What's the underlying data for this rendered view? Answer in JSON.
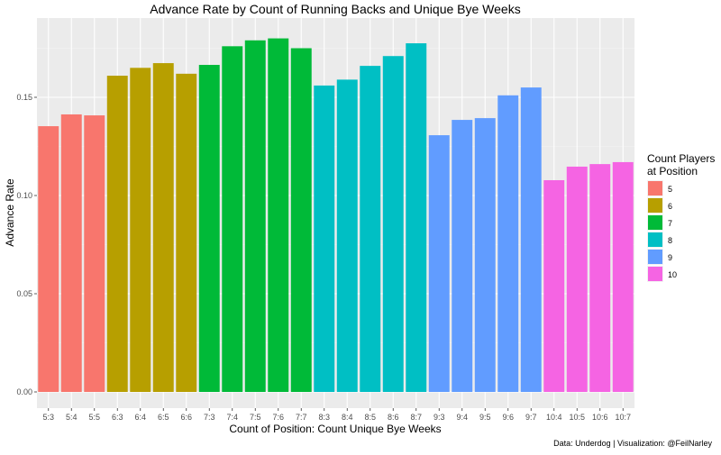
{
  "chart_data": {
    "type": "bar",
    "title": "Advance Rate by Count of Running Backs and Unique Bye Weeks",
    "xlabel": "Count of Position: Count Unique Bye Weeks",
    "ylabel": "Advance Rate",
    "ylim": [
      0,
      0.19
    ],
    "yticks": [
      0.0,
      0.05,
      0.1,
      0.15
    ],
    "ytick_labels": [
      "0.00",
      "0.05",
      "0.10",
      "0.15"
    ],
    "grid": true,
    "categories": [
      "5:3",
      "5:4",
      "5:5",
      "6:3",
      "6:4",
      "6:5",
      "6:6",
      "7:3",
      "7:4",
      "7:5",
      "7:6",
      "7:7",
      "8:3",
      "8:4",
      "8:5",
      "8:6",
      "8:7",
      "9:3",
      "9:4",
      "9:5",
      "9:6",
      "9:7",
      "10:4",
      "10:5",
      "10:6",
      "10:7"
    ],
    "groups": [
      "5",
      "5",
      "5",
      "6",
      "6",
      "6",
      "6",
      "7",
      "7",
      "7",
      "7",
      "7",
      "8",
      "8",
      "8",
      "8",
      "8",
      "9",
      "9",
      "9",
      "9",
      "9",
      "10",
      "10",
      "10",
      "10"
    ],
    "values": [
      0.1353,
      0.1413,
      0.1408,
      0.161,
      0.165,
      0.1674,
      0.162,
      0.1665,
      0.176,
      0.179,
      0.18,
      0.175,
      0.156,
      0.159,
      0.166,
      0.171,
      0.1775,
      0.1307,
      0.1385,
      0.1394,
      0.151,
      0.155,
      0.1078,
      0.1147,
      0.116,
      0.117
    ],
    "legend": {
      "title_lines": [
        "Count Players",
        "at Position"
      ],
      "placement": "right",
      "entries": [
        {
          "label": "5",
          "color": "#F8766D"
        },
        {
          "label": "6",
          "color": "#B79F00"
        },
        {
          "label": "7",
          "color": "#00BA38"
        },
        {
          "label": "8",
          "color": "#00BFC4"
        },
        {
          "label": "9",
          "color": "#619CFF"
        },
        {
          "label": "10",
          "color": "#F564E3"
        }
      ]
    },
    "caption": "Data: Underdog | Visualization: @FeilNarley"
  }
}
